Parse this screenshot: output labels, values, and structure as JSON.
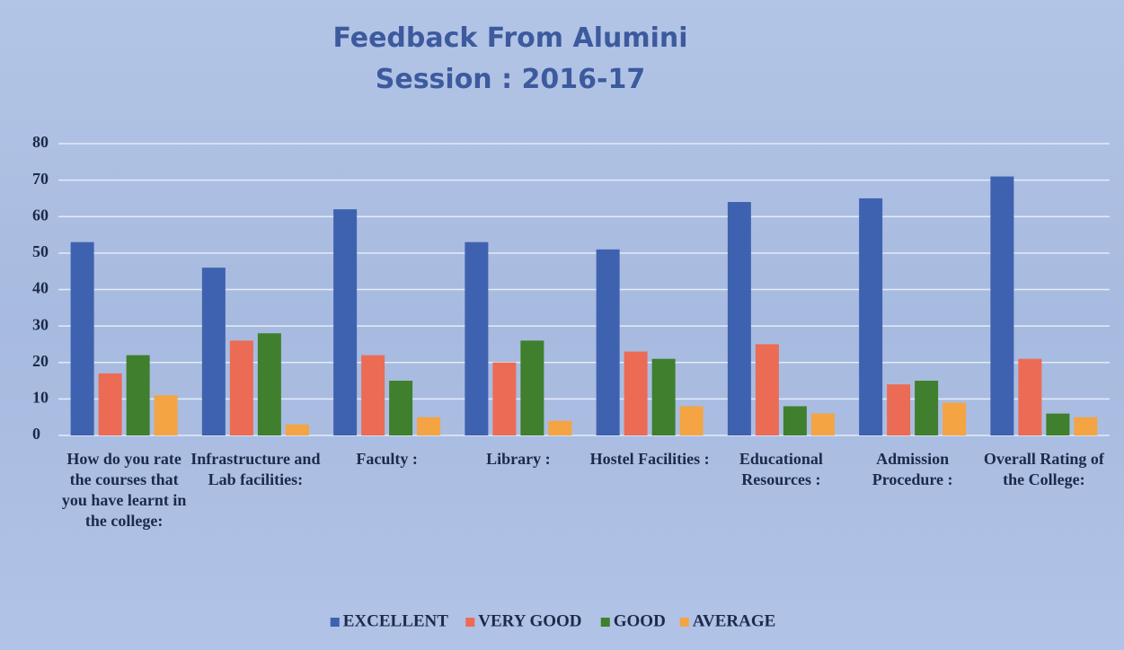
{
  "chart_data": {
    "type": "bar",
    "title": "Feedback From Alumini",
    "subtitle": "Session : 2016-17",
    "categories": [
      "How do you rate the courses that you have learnt in the college:",
      "Infrastructure and Lab facilities:",
      "Faculty :",
      "Library :",
      "Hostel Facilities :",
      "Educational Resources :",
      "Admission Procedure :",
      "Overall Rating of the College:"
    ],
    "series": [
      {
        "name": "EXCELLENT",
        "color": "#3f62b0",
        "values": [
          53,
          46,
          62,
          53,
          51,
          64,
          65,
          71
        ]
      },
      {
        "name": "VERY GOOD",
        "color": "#ec6b55",
        "values": [
          17,
          26,
          22,
          20,
          23,
          25,
          14,
          21
        ]
      },
      {
        "name": "GOOD",
        "color": "#3f7f2d",
        "values": [
          22,
          28,
          15,
          26,
          21,
          8,
          15,
          6
        ]
      },
      {
        "name": "AVERAGE",
        "color": "#f4a442",
        "values": [
          11,
          3,
          5,
          4,
          8,
          6,
          9,
          5
        ]
      }
    ],
    "ylim": [
      0,
      80
    ],
    "yticks": [
      0,
      10,
      20,
      30,
      40,
      50,
      60,
      70,
      80
    ],
    "grid": true,
    "legend": "bottom"
  }
}
